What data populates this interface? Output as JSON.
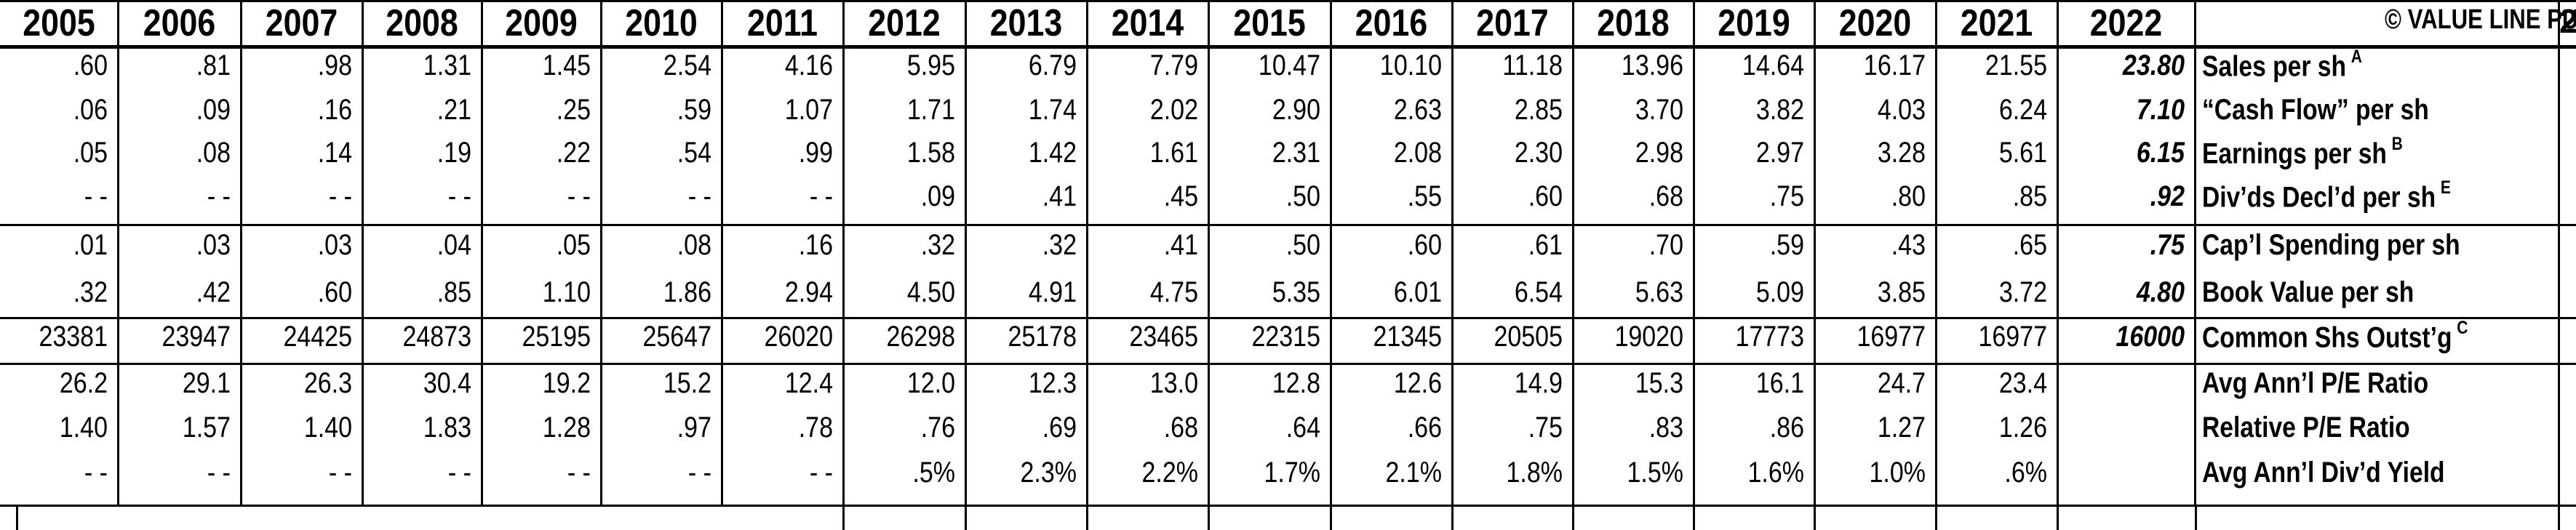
{
  "copyright": "© VALUE LINE PUB. LLC",
  "edge_glyph": "2",
  "years": [
    "2005",
    "2006",
    "2007",
    "2008",
    "2009",
    "2010",
    "2011",
    "2012",
    "2013",
    "2014",
    "2015",
    "2016",
    "2017",
    "2018",
    "2019",
    "2020",
    "2021",
    "2022"
  ],
  "rows": [
    {
      "label": "Sales per sh",
      "sup": "A",
      "values": [
        ".60",
        ".81",
        ".98",
        "1.31",
        "1.45",
        "2.54",
        "4.16",
        "5.95",
        "6.79",
        "7.79",
        "10.47",
        "10.10",
        "11.18",
        "13.96",
        "14.64",
        "16.17",
        "21.55"
      ],
      "estimate": "23.80"
    },
    {
      "label": "“Cash Flow” per sh",
      "sup": "",
      "values": [
        ".06",
        ".09",
        ".16",
        ".21",
        ".25",
        ".59",
        "1.07",
        "1.71",
        "1.74",
        "2.02",
        "2.90",
        "2.63",
        "2.85",
        "3.70",
        "3.82",
        "4.03",
        "6.24"
      ],
      "estimate": "7.10"
    },
    {
      "label": "Earnings per sh",
      "sup": "B",
      "values": [
        ".05",
        ".08",
        ".14",
        ".19",
        ".22",
        ".54",
        ".99",
        "1.58",
        "1.42",
        "1.61",
        "2.31",
        "2.08",
        "2.30",
        "2.98",
        "2.97",
        "3.28",
        "5.61"
      ],
      "estimate": "6.15"
    },
    {
      "label": "Div’ds Decl’d per sh",
      "sup": "E",
      "values": [
        "- -",
        "- -",
        "- -",
        "- -",
        "- -",
        "- -",
        "- -",
        ".09",
        ".41",
        ".45",
        ".50",
        ".55",
        ".60",
        ".68",
        ".75",
        ".80",
        ".85"
      ],
      "estimate": ".92"
    },
    {
      "label": "Cap’l Spending per sh",
      "sup": "",
      "values": [
        ".01",
        ".03",
        ".03",
        ".04",
        ".05",
        ".08",
        ".16",
        ".32",
        ".32",
        ".41",
        ".50",
        ".60",
        ".61",
        ".70",
        ".59",
        ".43",
        ".65"
      ],
      "estimate": ".75"
    },
    {
      "label": "Book Value per sh",
      "sup": "",
      "values": [
        ".32",
        ".42",
        ".60",
        ".85",
        "1.10",
        "1.86",
        "2.94",
        "4.50",
        "4.91",
        "4.75",
        "5.35",
        "6.01",
        "6.54",
        "5.63",
        "5.09",
        "3.85",
        "3.72"
      ],
      "estimate": "4.80"
    },
    {
      "label": "Common Shs Outst’g",
      "sup": "C",
      "values": [
        "23381",
        "23947",
        "24425",
        "24873",
        "25195",
        "25647",
        "26020",
        "26298",
        "25178",
        "23465",
        "22315",
        "21345",
        "20505",
        "19020",
        "17773",
        "16977",
        "16977"
      ],
      "estimate": "16000"
    },
    {
      "label": "Avg Ann’l P/E Ratio",
      "sup": "",
      "values": [
        "26.2",
        "29.1",
        "26.3",
        "30.4",
        "19.2",
        "15.2",
        "12.4",
        "12.0",
        "12.3",
        "13.0",
        "12.8",
        "12.6",
        "14.9",
        "15.3",
        "16.1",
        "24.7",
        "23.4"
      ],
      "estimate": ""
    },
    {
      "label": "Relative P/E Ratio",
      "sup": "",
      "values": [
        "1.40",
        "1.57",
        "1.40",
        "1.83",
        "1.28",
        ".97",
        ".78",
        ".76",
        ".69",
        ".68",
        ".64",
        ".66",
        ".75",
        ".83",
        ".86",
        "1.27",
        "1.26"
      ],
      "estimate": ""
    },
    {
      "label": "Avg Ann’l Div’d Yield",
      "sup": "",
      "values": [
        "- -",
        "- -",
        "- -",
        "- -",
        "- -",
        "- -",
        "- -",
        ".5%",
        "2.3%",
        "2.2%",
        "1.7%",
        "2.1%",
        "1.8%",
        "1.5%",
        "1.6%",
        "1.0%",
        ".6%"
      ],
      "estimate": ""
    }
  ]
}
